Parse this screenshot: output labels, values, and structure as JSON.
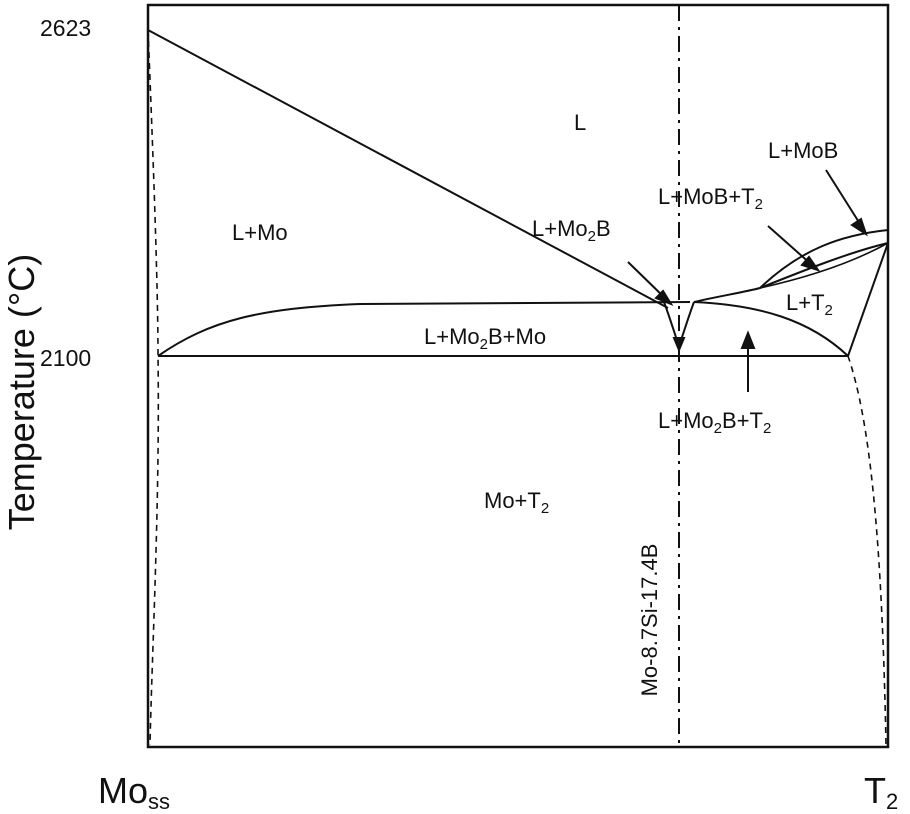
{
  "y_axis": {
    "label": "Temperature (°C)",
    "ticks": [
      "2623",
      "2100"
    ]
  },
  "x_axis": {
    "left": {
      "main": "Mo",
      "sub": "ss"
    },
    "right": {
      "main": "T",
      "sub": "2"
    }
  },
  "alloy_line_label": "Mo-8.7Si-17.4B",
  "regions": {
    "liquid": "L",
    "l_mo": "L+Mo",
    "l_mo2b": {
      "a": "L+Mo",
      "sub": "2",
      "b": "B"
    },
    "l_mob": "L+MoB",
    "l_mob_t2": {
      "a": "L+MoB+T",
      "sub": "2"
    },
    "l_t2": {
      "a": "L+T",
      "sub": "2"
    },
    "l_mo2b_mo": {
      "a": "L+Mo",
      "sub": "2",
      "b": "B+Mo"
    },
    "l_mo2b_t2": {
      "a": "L+Mo",
      "sub": "2",
      "b": "B+T",
      "sub2": "2"
    },
    "mo_t2": {
      "a": "Mo+T",
      "sub": "2"
    }
  },
  "colors": {
    "ink": "#111111",
    "background": "#ffffff"
  }
}
